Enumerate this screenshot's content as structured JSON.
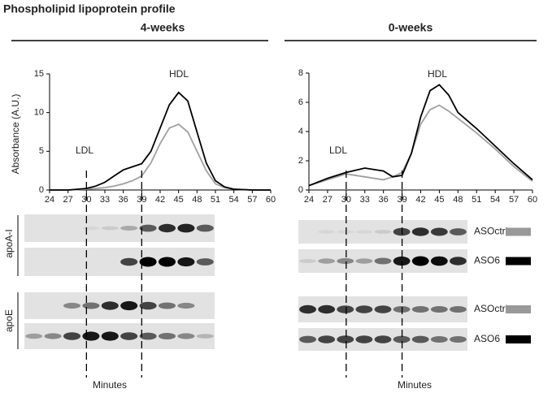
{
  "title": "Phospholipid lipoprotein profile",
  "chart_data": [
    {
      "type": "line",
      "title": "4-weeks",
      "ylabel": "Absorbance (A.U.)",
      "xlabel": "Minutes",
      "annotations": [
        "LDL",
        "HDL"
      ],
      "x": [
        24,
        27,
        30,
        31.5,
        33,
        34.5,
        36,
        37.5,
        39,
        40.5,
        42,
        43.5,
        45,
        46.5,
        48,
        49.5,
        51,
        52.5,
        54,
        57,
        60
      ],
      "series": [
        {
          "color": "#000000",
          "values": [
            0,
            0,
            0.2,
            0.5,
            1.0,
            1.8,
            2.6,
            3.0,
            3.4,
            5.0,
            8.0,
            11.0,
            12.6,
            11.5,
            7.5,
            3.5,
            1.2,
            0.4,
            0.1,
            0,
            0
          ]
        },
        {
          "color": "#a0a0a0",
          "values": [
            0,
            0,
            0.1,
            0.2,
            0.3,
            0.5,
            0.8,
            1.2,
            1.8,
            3.5,
            6.0,
            8.0,
            8.5,
            7.5,
            5.0,
            2.5,
            0.8,
            0.3,
            0.1,
            0,
            0
          ]
        }
      ],
      "xlim": [
        24,
        60
      ],
      "xticks": [
        24,
        27,
        30,
        33,
        36,
        39,
        42,
        45,
        48,
        51,
        54,
        57,
        60
      ],
      "ylim": [
        0,
        15
      ],
      "yticks": [
        0,
        5,
        10,
        15
      ],
      "vlines": [
        30,
        39
      ]
    },
    {
      "type": "line",
      "title": "0-weeks",
      "xlabel": "Minutes",
      "annotations": [
        "LDL",
        "HDL"
      ],
      "x": [
        24,
        27,
        30,
        33,
        36,
        37.5,
        39,
        40.5,
        42,
        43.5,
        45,
        46.5,
        48,
        51,
        54,
        57,
        60
      ],
      "series": [
        {
          "color": "#000000",
          "values": [
            0.3,
            0.8,
            1.2,
            1.5,
            1.3,
            0.9,
            1.0,
            2.5,
            5.0,
            6.8,
            7.2,
            6.5,
            5.3,
            4.2,
            3.0,
            1.8,
            0.7
          ]
        },
        {
          "color": "#a0a0a0",
          "values": [
            0.3,
            0.7,
            1.1,
            0.9,
            0.7,
            0.9,
            1.2,
            2.5,
            4.5,
            5.5,
            5.8,
            5.4,
            4.9,
            3.9,
            2.8,
            1.6,
            0.6
          ]
        }
      ],
      "xlim": [
        24,
        60
      ],
      "xticks": [
        24,
        27,
        30,
        33,
        36,
        39,
        42,
        45,
        48,
        51,
        54,
        57,
        60
      ],
      "ylim": [
        0,
        8
      ],
      "yticks": [
        0,
        2,
        4,
        6,
        8
      ],
      "vlines": [
        30,
        39
      ]
    }
  ],
  "blots": {
    "groups": [
      "apoA-I",
      "apoE"
    ],
    "rows": [
      {
        "label": "ASOctrl",
        "color": "#999999"
      },
      {
        "label": "ASO6",
        "color": "#000000"
      },
      {
        "label": "ASOctrl",
        "color": "#999999"
      },
      {
        "label": "ASO6",
        "color": "#000000"
      }
    ]
  }
}
